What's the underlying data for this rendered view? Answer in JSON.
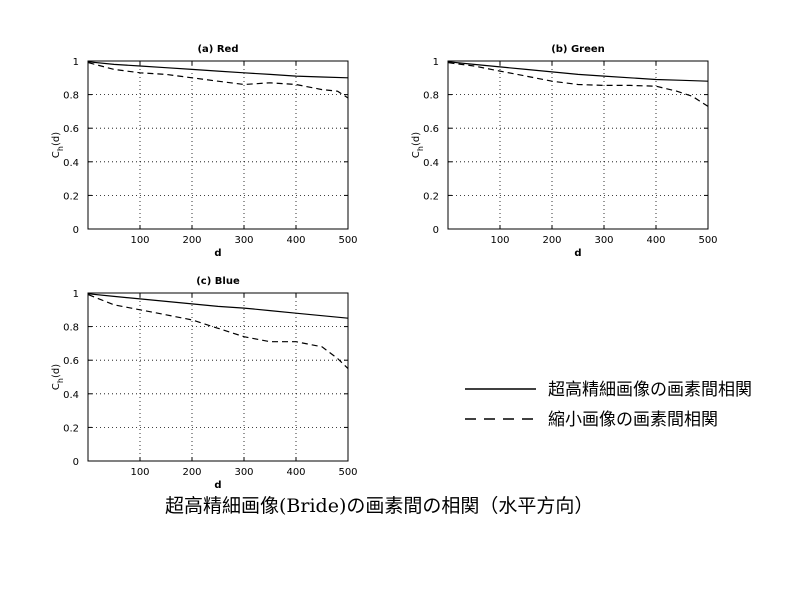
{
  "figure": {
    "caption": "超高精細画像(Bride)の画素間の相関（水平方向）"
  },
  "legend": {
    "entries": [
      {
        "label": "超高精細画像の画素間相関",
        "style": "solid"
      },
      {
        "label": "縮小画像の画素間相関",
        "style": "dashed"
      }
    ]
  },
  "chart_data": [
    {
      "type": "line",
      "title": "(a) Red",
      "xlabel": "d",
      "ylabel": "C_h(d)",
      "xlim": [
        0,
        500
      ],
      "ylim": [
        0,
        1
      ],
      "xticks": [
        100,
        200,
        300,
        400,
        500
      ],
      "yticks": [
        0,
        0.2,
        0.4,
        0.6,
        0.8,
        1
      ],
      "grid": true,
      "series": [
        {
          "name": "超高精細画像の画素間相関",
          "style": "solid",
          "x": [
            1,
            50,
            100,
            150,
            200,
            250,
            300,
            350,
            400,
            450,
            500
          ],
          "y": [
            0.995,
            0.98,
            0.97,
            0.96,
            0.95,
            0.94,
            0.93,
            0.92,
            0.91,
            0.905,
            0.9
          ]
        },
        {
          "name": "縮小画像の画素間相関",
          "style": "dashed",
          "x": [
            1,
            50,
            100,
            150,
            200,
            250,
            300,
            350,
            400,
            450,
            480,
            500
          ],
          "y": [
            0.99,
            0.95,
            0.93,
            0.92,
            0.9,
            0.88,
            0.86,
            0.87,
            0.86,
            0.83,
            0.82,
            0.78
          ]
        }
      ]
    },
    {
      "type": "line",
      "title": "(b) Green",
      "xlabel": "d",
      "ylabel": "C_h(d)",
      "xlim": [
        0,
        500
      ],
      "ylim": [
        0,
        1
      ],
      "xticks": [
        100,
        200,
        300,
        400,
        500
      ],
      "yticks": [
        0,
        0.2,
        0.4,
        0.6,
        0.8,
        1
      ],
      "grid": true,
      "series": [
        {
          "name": "超高精細画像の画素間相関",
          "style": "solid",
          "x": [
            1,
            50,
            100,
            150,
            200,
            250,
            300,
            350,
            400,
            450,
            500
          ],
          "y": [
            0.995,
            0.98,
            0.965,
            0.95,
            0.935,
            0.92,
            0.91,
            0.9,
            0.89,
            0.885,
            0.88
          ]
        },
        {
          "name": "縮小画像の画素間相関",
          "style": "dashed",
          "x": [
            1,
            50,
            100,
            150,
            200,
            250,
            300,
            350,
            400,
            440,
            470,
            500
          ],
          "y": [
            0.99,
            0.97,
            0.94,
            0.91,
            0.88,
            0.86,
            0.855,
            0.855,
            0.85,
            0.82,
            0.79,
            0.73
          ]
        }
      ]
    },
    {
      "type": "line",
      "title": "(c) Blue",
      "xlabel": "d",
      "ylabel": "C_h(d)",
      "xlim": [
        0,
        500
      ],
      "ylim": [
        0,
        1
      ],
      "xticks": [
        100,
        200,
        300,
        400,
        500
      ],
      "yticks": [
        0,
        0.2,
        0.4,
        0.6,
        0.8,
        1
      ],
      "grid": true,
      "series": [
        {
          "name": "超高精細画像の画素間相関",
          "style": "solid",
          "x": [
            1,
            50,
            100,
            150,
            200,
            250,
            300,
            350,
            400,
            450,
            500
          ],
          "y": [
            0.995,
            0.98,
            0.965,
            0.95,
            0.935,
            0.92,
            0.91,
            0.895,
            0.88,
            0.865,
            0.85
          ]
        },
        {
          "name": "縮小画像の画素間相関",
          "style": "dashed",
          "x": [
            1,
            25,
            50,
            100,
            150,
            200,
            250,
            300,
            350,
            400,
            450,
            480,
            500
          ],
          "y": [
            0.99,
            0.96,
            0.93,
            0.9,
            0.87,
            0.84,
            0.79,
            0.74,
            0.71,
            0.71,
            0.68,
            0.61,
            0.55
          ]
        }
      ]
    }
  ]
}
